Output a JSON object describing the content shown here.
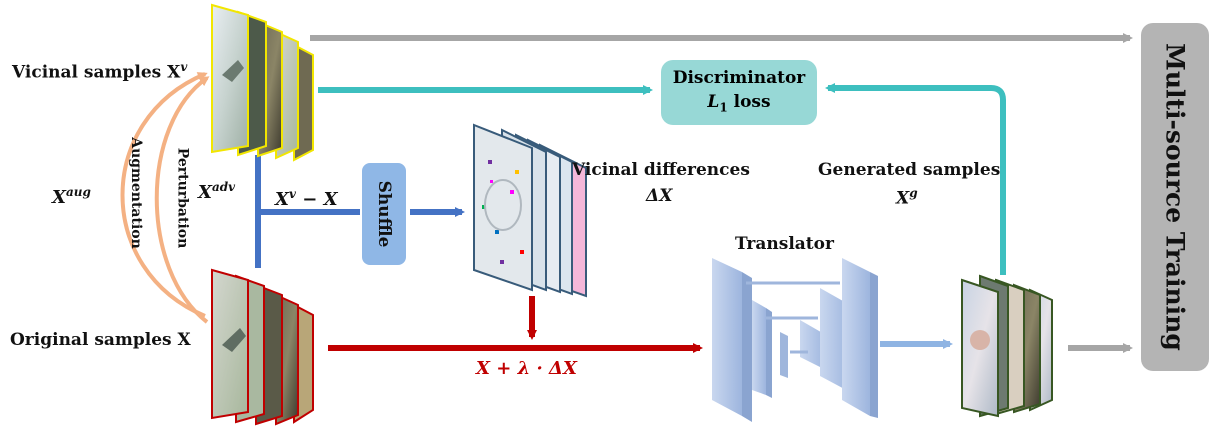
{
  "labels": {
    "vicinal": "Vicinal samples X",
    "vicinal_sup": "v",
    "original": "Original samples X",
    "x_aug": "X",
    "x_aug_sup": "aug",
    "x_adv": "X",
    "x_adv_sup": "adv",
    "augmentation": "Augmentation",
    "perturbation": "Perturbation",
    "xv_minus_x_a": "X",
    "xv_minus_x_sup": "v",
    "xv_minus_x_b": " − X",
    "shuffle": "Shuffle",
    "vicinal_diff": "Vicinal differences",
    "delta_x": "ΔX",
    "discriminator": "Discriminator",
    "l1_loss_a": "L",
    "l1_loss_sub": "1",
    "l1_loss_b": " loss",
    "generated": "Generated samples",
    "xg": "X",
    "xg_sup": "g",
    "translator": "Translator",
    "formula": "X + λ · ΔX",
    "multi_source": "Multi-source Training"
  },
  "colors": {
    "teal": "#3dbfbf",
    "blue": "#4472c4",
    "red": "#c00000",
    "gray": "#a6a6a6",
    "orange": "#f4b183",
    "yellow_border": "#f2e600",
    "red_border": "#c00000",
    "green_border": "#385723",
    "translator": "#b4c7e7"
  },
  "icons": [
    "sample-stack-vicinal",
    "sample-stack-original",
    "sample-stack-differences",
    "sample-stack-generated",
    "translator-network"
  ]
}
